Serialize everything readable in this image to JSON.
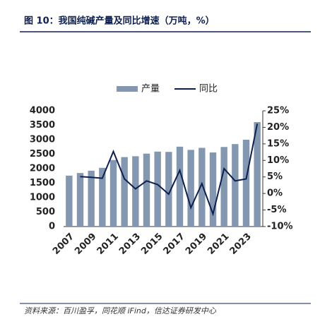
{
  "chart_data": {
    "type": "combo",
    "title": "图 10：我国纯碱产量及同比增速（万吨，%）",
    "source": "资料来源：百川盈孚，同花顺 iFind，信达证券研发中心",
    "categories": [
      "2007",
      null,
      "2009",
      null,
      "2011",
      null,
      "2013",
      null,
      "2015",
      null,
      "2017",
      null,
      "2019",
      null,
      "2021",
      null,
      "2023",
      null
    ],
    "series": [
      {
        "name": "产量",
        "type": "bar",
        "color": "#8497b0",
        "values": [
          1760,
          1850,
          1930,
          2030,
          2300,
          2400,
          2430,
          2520,
          2590,
          2580,
          2760,
          2650,
          2720,
          2560,
          2750,
          2850,
          3000,
          3610
        ]
      },
      {
        "name": "同比",
        "type": "line",
        "axis": "y2",
        "color": "#0d1f4f",
        "values": [
          null,
          5.1,
          4.9,
          4.6,
          12.7,
          4.4,
          1.4,
          3.8,
          2.7,
          -0.2,
          7.0,
          -4.3,
          3.0,
          -6.2,
          7.5,
          3.8,
          4.4,
          21.1
        ]
      }
    ],
    "ylim": [
      0,
      4000
    ],
    "yticks": [
      0,
      500,
      1000,
      1500,
      2000,
      2500,
      3000,
      3500,
      4000
    ],
    "y2lim": [
      -10,
      25
    ],
    "y2ticks": [
      {
        "value": -10,
        "label": "-10%"
      },
      {
        "value": -5,
        "label": "-5%"
      },
      {
        "value": 0,
        "label": "0%"
      },
      {
        "value": 5,
        "label": "5%"
      },
      {
        "value": 10,
        "label": "10%"
      },
      {
        "value": 15,
        "label": "15%"
      },
      {
        "value": 20,
        "label": "20%"
      },
      {
        "value": 25,
        "label": "25%"
      }
    ],
    "grid": false
  }
}
